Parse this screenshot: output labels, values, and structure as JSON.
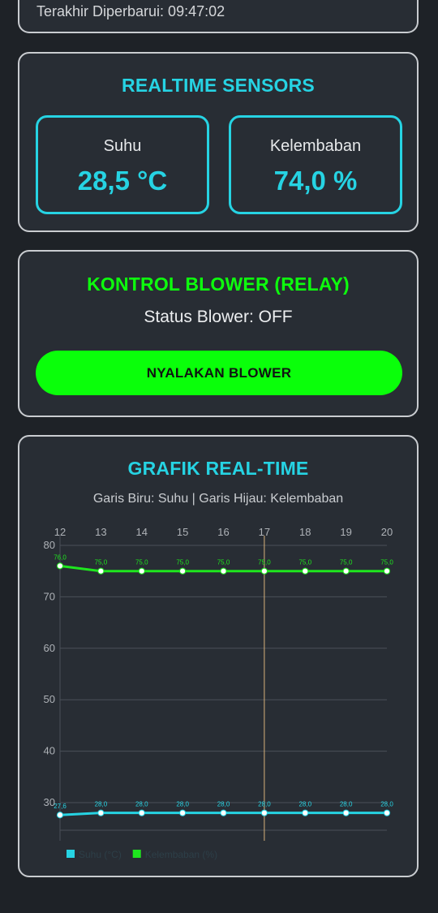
{
  "status": {
    "last_updated": "Terakhir Diperbarui: 09:47:02"
  },
  "sensors": {
    "title": "REALTIME SENSORS",
    "temperature": {
      "label": "Suhu",
      "value": "28,5 °C"
    },
    "humidity": {
      "label": "Kelembaban",
      "value": "74,0 %"
    }
  },
  "blower": {
    "title": "KONTROL BLOWER (RELAY)",
    "status_text": "Status Blower: OFF",
    "button_label": "NYALAKAN BLOWER"
  },
  "chart": {
    "title": "GRAFIK REAL-TIME",
    "subtitle": "Garis Biru: Suhu | Garis Hijau: Kelembaban"
  },
  "chart_data": {
    "type": "line",
    "title": "GRAFIK REAL-TIME",
    "subtitle": "Garis Biru: Suhu | Garis Hijau: Kelembaban",
    "x": [
      12,
      13,
      14,
      15,
      16,
      17,
      18,
      19,
      20
    ],
    "ylim": [
      30,
      80
    ],
    "yticks": [
      30,
      40,
      50,
      60,
      70,
      80
    ],
    "x_axis_position": "top",
    "grid": true,
    "legend_position": "bottom-left",
    "hover_marker_x": 17,
    "series": [
      {
        "name": "Suhu (°C)",
        "color": "#26d3e3",
        "values": [
          27.6,
          28.0,
          28.0,
          28.0,
          28.0,
          28.0,
          28.0,
          28.0,
          28.0
        ],
        "labels": [
          "27,6",
          "28,0",
          "28,0",
          "28,0",
          "28,0",
          "28,0",
          "28,0",
          "28,0",
          "28,0"
        ]
      },
      {
        "name": "Kelembaban (%)",
        "color": "#1ee61e",
        "values": [
          76.0,
          75.0,
          75.0,
          75.0,
          75.0,
          75.0,
          75.0,
          75.0,
          75.0
        ],
        "labels": [
          "76,0",
          "75,0",
          "75,0",
          "75,0",
          "75,0",
          "75,0",
          "75,0",
          "75,0",
          "75,0"
        ]
      }
    ]
  }
}
